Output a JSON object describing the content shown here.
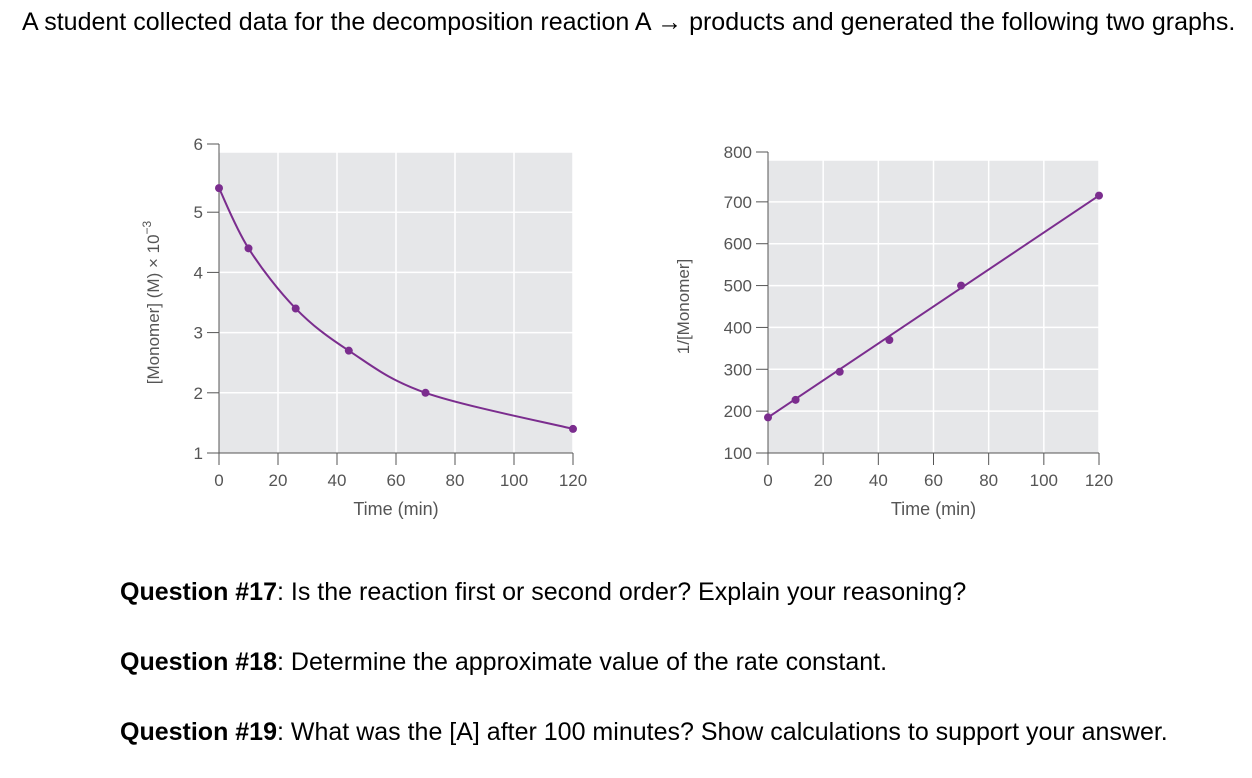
{
  "intro": "A student collected data for the decomposition reaction A → products and generated the following two graphs.",
  "questions": [
    {
      "label": "Question #17",
      "sep": ":",
      "text": " Is the reaction first or second order? Explain your reasoning?"
    },
    {
      "label": "Question #18",
      "sep": ":",
      "text": " Determine the approximate value of the rate constant."
    },
    {
      "label": "Question #19",
      "sep": ":",
      "text": " What was the [A] after 100 minutes? Show calculations to support your answer."
    }
  ],
  "chart_data": [
    {
      "type": "line",
      "xlabel": "Time (min)",
      "ylabel_main": "[Monomer] (M) × 10",
      "ylabel_exp": "−3",
      "xlim": [
        0,
        120
      ],
      "ylim": [
        1,
        6
      ],
      "xticks": [
        0,
        20,
        40,
        60,
        80,
        100,
        120
      ],
      "yticks": [
        1,
        2,
        3,
        4,
        5,
        6
      ],
      "points": [
        {
          "x": 0,
          "y": 5.4
        },
        {
          "x": 10,
          "y": 4.4
        },
        {
          "x": 26,
          "y": 3.4
        },
        {
          "x": 44,
          "y": 2.7
        },
        {
          "x": 70,
          "y": 2.0
        },
        {
          "x": 120,
          "y": 1.4
        }
      ],
      "curve": "smooth",
      "grid": true,
      "color": "#7b2d8e",
      "background": "#e6e7e9"
    },
    {
      "type": "line",
      "xlabel": "Time (min)",
      "ylabel_main": "1/[Monomer]",
      "ylabel_exp": "",
      "xlim": [
        0,
        120
      ],
      "ylim": [
        100,
        800
      ],
      "xticks": [
        0,
        20,
        40,
        60,
        80,
        100,
        120
      ],
      "yticks": [
        100,
        200,
        300,
        400,
        500,
        600,
        700,
        800
      ],
      "points": [
        {
          "x": 0,
          "y": 185
        },
        {
          "x": 10,
          "y": 227
        },
        {
          "x": 26,
          "y": 294
        },
        {
          "x": 44,
          "y": 370
        },
        {
          "x": 70,
          "y": 500
        },
        {
          "x": 120,
          "y": 715
        }
      ],
      "curve": "linear",
      "grid": true,
      "color": "#7b2d8e",
      "background": "#e6e7e9"
    }
  ]
}
